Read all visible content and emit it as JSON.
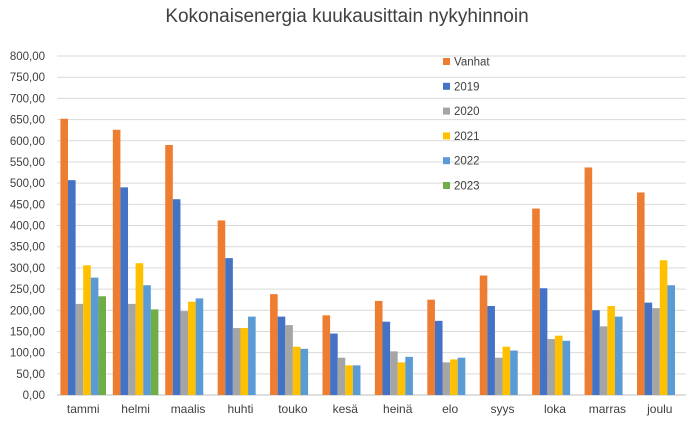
{
  "chart_data": {
    "type": "bar",
    "title": "Kokonaisenergia kuukausittain nykyhinnoin",
    "xlabel": "",
    "ylabel": "",
    "ylim": [
      0,
      800
    ],
    "yticks": [
      "0,00",
      "50,00",
      "100,00",
      "150,00",
      "200,00",
      "250,00",
      "300,00",
      "350,00",
      "400,00",
      "450,00",
      "500,00",
      "550,00",
      "600,00",
      "650,00",
      "700,00",
      "750,00",
      "800,00"
    ],
    "grid": true,
    "legend_position": "top-right",
    "categories": [
      "tammi",
      "helmi",
      "maalis",
      "huhti",
      "touko",
      "kesä",
      "heinä",
      "elo",
      "syys",
      "loka",
      "marras",
      "joulu"
    ],
    "series": [
      {
        "name": "Vanhat",
        "color": "#ed7d31",
        "values": [
          652,
          626,
          590,
          412,
          238,
          188,
          222,
          225,
          282,
          440,
          537,
          478
        ]
      },
      {
        "name": "2019",
        "color": "#4472c4",
        "values": [
          507,
          490,
          462,
          323,
          185,
          145,
          173,
          175,
          210,
          252,
          200,
          218
        ]
      },
      {
        "name": "2020",
        "color": "#a5a5a5",
        "values": [
          215,
          215,
          198,
          158,
          165,
          88,
          103,
          77,
          88,
          132,
          162,
          205
        ]
      },
      {
        "name": "2021",
        "color": "#ffc000",
        "values": [
          306,
          311,
          220,
          158,
          114,
          70,
          77,
          84,
          114,
          140,
          210,
          318
        ]
      },
      {
        "name": "2022",
        "color": "#5b9bd5",
        "values": [
          277,
          259,
          228,
          185,
          109,
          70,
          90,
          88,
          105,
          128,
          185,
          259
        ]
      },
      {
        "name": "2023",
        "color": "#70ad47",
        "values": [
          233,
          202,
          null,
          null,
          null,
          null,
          null,
          null,
          null,
          null,
          null,
          null
        ]
      }
    ]
  }
}
